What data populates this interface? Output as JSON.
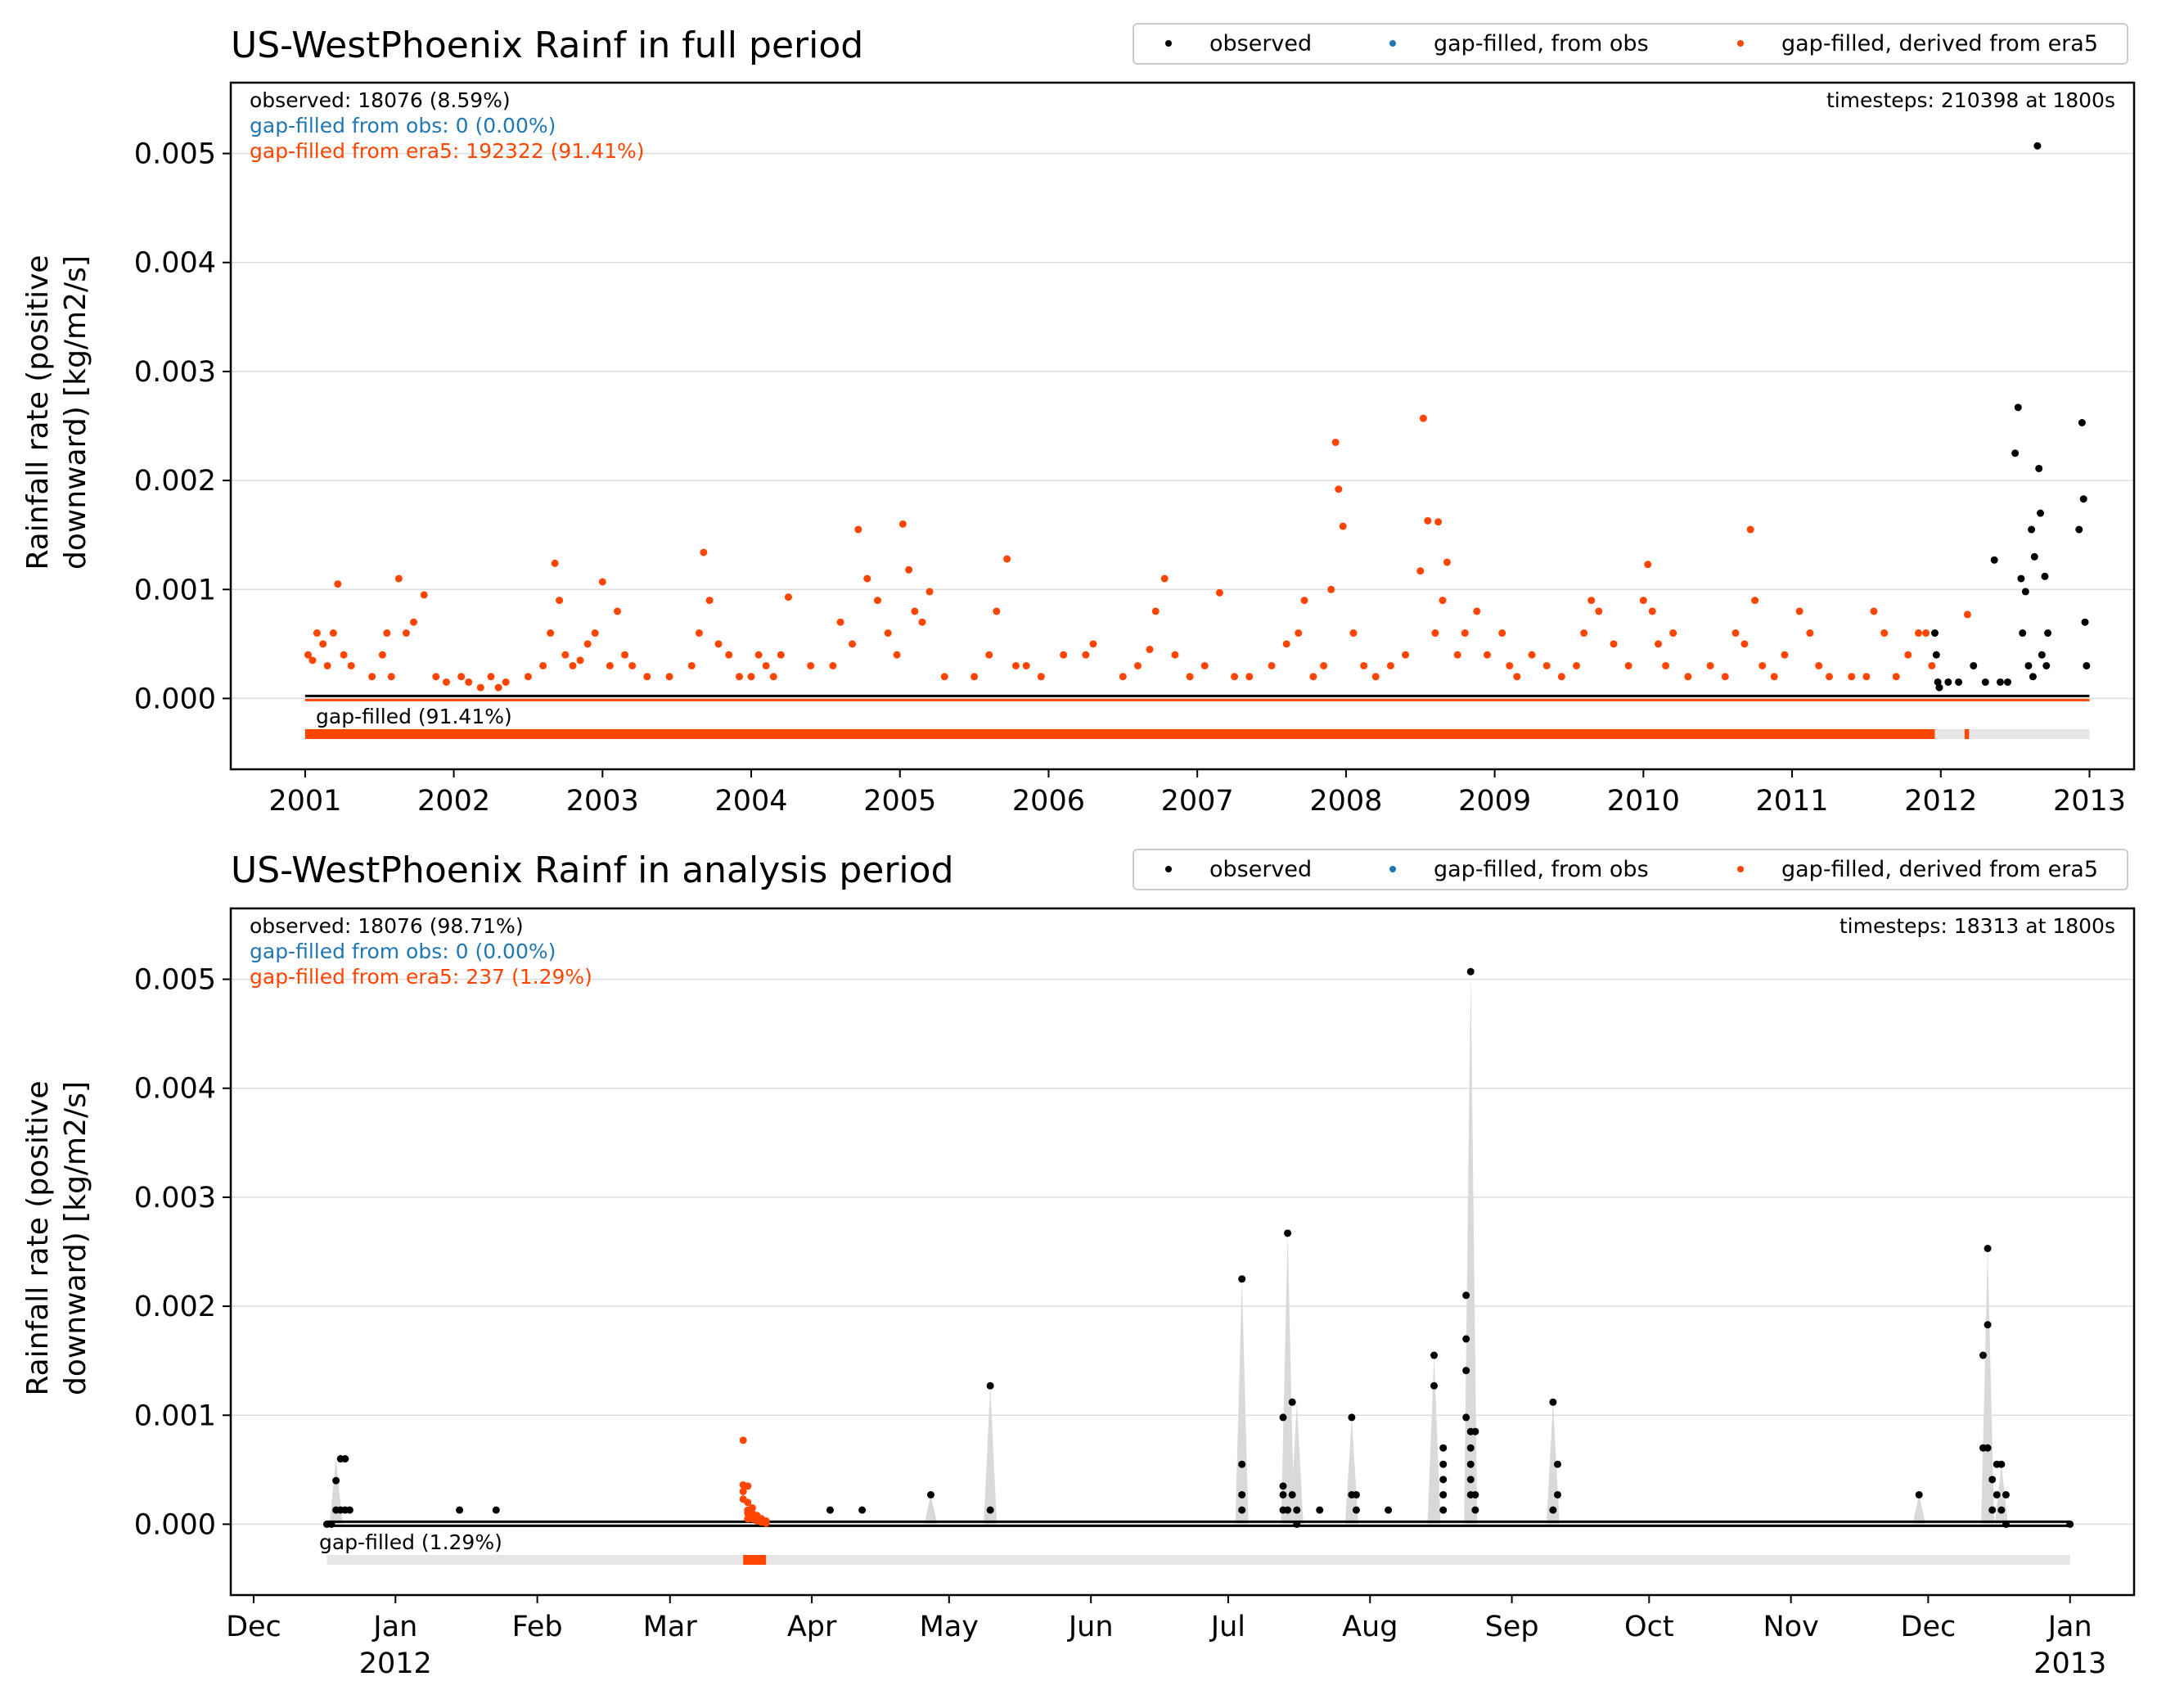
{
  "colors": {
    "observed": "#000000",
    "gapfilled_obs": "#1f77b4",
    "gapfilled_era5": "#ff4500",
    "shade": "#d9d9d9",
    "grid": "#dcdcdc",
    "gapbar_bg": "#e6e6e6"
  },
  "legend": {
    "observed": "observed",
    "gapfilled_obs": "gap-filled, from obs",
    "gapfilled_era5": "gap-filled, derived from era5"
  },
  "ylabel_line1": "Rainfall rate (positive",
  "ylabel_line2": "downward) [kg/m2/s]",
  "chart_data": [
    {
      "type": "scatter",
      "title": "US-WestPhoenix Rainf in full period",
      "ylabel": "Rainfall rate (positive downward) [kg/m2/s]",
      "xlabel": "",
      "xlim": [
        2000.5,
        2013.3
      ],
      "ylim": [
        -0.00065,
        0.00565
      ],
      "grid": "horizontal",
      "legend_position": "top-right, above plot",
      "yticks": [
        0.0,
        0.001,
        0.002,
        0.003,
        0.004,
        0.005
      ],
      "ytick_labels": [
        "0.000",
        "0.001",
        "0.002",
        "0.003",
        "0.004",
        "0.005"
      ],
      "xticks": [
        2001,
        2002,
        2003,
        2004,
        2005,
        2006,
        2007,
        2008,
        2009,
        2010,
        2011,
        2012,
        2013
      ],
      "xtick_labels": [
        [
          "2001"
        ],
        [
          "2002"
        ],
        [
          "2003"
        ],
        [
          "2004"
        ],
        [
          "2005"
        ],
        [
          "2006"
        ],
        [
          "2007"
        ],
        [
          "2008"
        ],
        [
          "2009"
        ],
        [
          "2010"
        ],
        [
          "2011"
        ],
        [
          "2012"
        ],
        [
          "2013"
        ]
      ],
      "annotations": {
        "observed": "observed: 18076 (8.59%)",
        "gapfilled_obs": "gap-filled from obs: 0 (0.00%)",
        "gapfilled_era5": "gap-filled from era5: 192322 (91.41%)",
        "timesteps": "timesteps: 210398 at 1800s",
        "gapbar_label": "gap-filled (91.41%)"
      },
      "gap_bar": {
        "range": [
          2001.0,
          2013.0
        ],
        "filled_segments": [
          [
            2001.0,
            2011.96
          ],
          [
            2012.16,
            2012.19
          ]
        ]
      },
      "series": [
        {
          "name": "gap-filled, derived from era5",
          "color_key": "gapfilled_era5",
          "x": [
            2001.02,
            2001.05,
            2001.08,
            2001.12,
            2001.15,
            2001.19,
            2001.22,
            2001.26,
            2001.31,
            2001.45,
            2001.52,
            2001.55,
            2001.58,
            2001.63,
            2001.68,
            2001.73,
            2001.8,
            2001.88,
            2001.95,
            2002.05,
            2002.1,
            2002.18,
            2002.25,
            2002.3,
            2002.35,
            2002.5,
            2002.6,
            2002.65,
            2002.68,
            2002.71,
            2002.75,
            2002.8,
            2002.85,
            2002.9,
            2002.95,
            2003.0,
            2003.05,
            2003.1,
            2003.15,
            2003.2,
            2003.3,
            2003.45,
            2003.6,
            2003.65,
            2003.68,
            2003.72,
            2003.78,
            2003.85,
            2003.92,
            2004.0,
            2004.05,
            2004.1,
            2004.15,
            2004.2,
            2004.25,
            2004.4,
            2004.55,
            2004.6,
            2004.68,
            2004.72,
            2004.78,
            2004.85,
            2004.92,
            2004.98,
            2005.02,
            2005.06,
            2005.1,
            2005.15,
            2005.2,
            2005.3,
            2005.5,
            2005.6,
            2005.65,
            2005.72,
            2005.78,
            2005.85,
            2005.95,
            2006.1,
            2006.25,
            2006.3,
            2006.5,
            2006.6,
            2006.68,
            2006.72,
            2006.78,
            2006.85,
            2006.95,
            2007.05,
            2007.15,
            2007.25,
            2007.35,
            2007.5,
            2007.6,
            2007.68,
            2007.72,
            2007.78,
            2007.85,
            2007.9,
            2007.93,
            2007.95,
            2007.98,
            2008.05,
            2008.12,
            2008.2,
            2008.3,
            2008.4,
            2008.5,
            2008.52,
            2008.55,
            2008.6,
            2008.62,
            2008.65,
            2008.68,
            2008.75,
            2008.8,
            2008.88,
            2008.95,
            2009.05,
            2009.1,
            2009.15,
            2009.25,
            2009.35,
            2009.45,
            2009.55,
            2009.6,
            2009.65,
            2009.7,
            2009.8,
            2009.9,
            2010.0,
            2010.03,
            2010.06,
            2010.1,
            2010.15,
            2010.2,
            2010.3,
            2010.45,
            2010.55,
            2010.62,
            2010.68,
            2010.72,
            2010.75,
            2010.8,
            2010.88,
            2010.95,
            2011.05,
            2011.12,
            2011.18,
            2011.25,
            2011.4,
            2011.5,
            2011.55,
            2011.62,
            2011.7,
            2011.78,
            2011.85,
            2011.9,
            2011.94,
            2012.18
          ],
          "y": [
            0.0004,
            0.00035,
            0.0006,
            0.0005,
            0.0003,
            0.0006,
            0.00105,
            0.0004,
            0.0003,
            0.0002,
            0.0004,
            0.0006,
            0.0002,
            0.0011,
            0.0006,
            0.0007,
            0.00095,
            0.0002,
            0.00015,
            0.0002,
            0.00015,
            0.0001,
            0.0002,
            0.0001,
            0.00015,
            0.0002,
            0.0003,
            0.0006,
            0.00124,
            0.0009,
            0.0004,
            0.0003,
            0.00035,
            0.0005,
            0.0006,
            0.00107,
            0.0003,
            0.0008,
            0.0004,
            0.0003,
            0.0002,
            0.0002,
            0.0003,
            0.0006,
            0.00134,
            0.0009,
            0.0005,
            0.0004,
            0.0002,
            0.0002,
            0.0004,
            0.0003,
            0.0002,
            0.0004,
            0.00093,
            0.0003,
            0.0003,
            0.0007,
            0.0005,
            0.00155,
            0.0011,
            0.0009,
            0.0006,
            0.0004,
            0.0016,
            0.00118,
            0.0008,
            0.0007,
            0.00098,
            0.0002,
            0.0002,
            0.0004,
            0.0008,
            0.00128,
            0.0003,
            0.0003,
            0.0002,
            0.0004,
            0.0004,
            0.0005,
            0.0002,
            0.0003,
            0.00045,
            0.0008,
            0.0011,
            0.0004,
            0.0002,
            0.0003,
            0.00097,
            0.0002,
            0.0002,
            0.0003,
            0.0005,
            0.0006,
            0.0009,
            0.0002,
            0.0003,
            0.001,
            0.00235,
            0.00192,
            0.00158,
            0.0006,
            0.0003,
            0.0002,
            0.0003,
            0.0004,
            0.00117,
            0.00257,
            0.00163,
            0.0006,
            0.00162,
            0.0009,
            0.00125,
            0.0004,
            0.0006,
            0.0008,
            0.0004,
            0.0006,
            0.0003,
            0.0002,
            0.0004,
            0.0003,
            0.0002,
            0.0003,
            0.0006,
            0.0009,
            0.0008,
            0.0005,
            0.0003,
            0.0009,
            0.00123,
            0.0008,
            0.0005,
            0.0003,
            0.0006,
            0.0002,
            0.0003,
            0.0002,
            0.0006,
            0.0005,
            0.00155,
            0.0009,
            0.0003,
            0.0002,
            0.0004,
            0.0008,
            0.0006,
            0.0003,
            0.0002,
            0.0002,
            0.0002,
            0.0008,
            0.0006,
            0.0002,
            0.0004,
            0.0006,
            0.0006,
            0.0003,
            0.00077
          ]
        },
        {
          "name": "observed",
          "color_key": "observed",
          "x": [
            2011.96,
            2011.97,
            2011.98,
            2011.99,
            2012.05,
            2012.12,
            2012.22,
            2012.3,
            2012.36,
            2012.4,
            2012.45,
            2012.5,
            2012.52,
            2012.54,
            2012.55,
            2012.57,
            2012.59,
            2012.61,
            2012.62,
            2012.63,
            2012.65,
            2012.66,
            2012.67,
            2012.68,
            2012.7,
            2012.71,
            2012.72,
            2012.93,
            2012.95,
            2012.96,
            2012.97,
            2012.98
          ],
          "y": [
            0.0006,
            0.0004,
            0.00015,
            0.0001,
            0.00015,
            0.00015,
            0.0003,
            0.00015,
            0.00127,
            0.00015,
            0.00015,
            0.00225,
            0.00267,
            0.0011,
            0.0006,
            0.00098,
            0.0003,
            0.00155,
            0.0002,
            0.0013,
            0.00507,
            0.00211,
            0.0017,
            0.0004,
            0.00112,
            0.0003,
            0.0006,
            0.00155,
            0.00253,
            0.00183,
            0.0007,
            0.0003
          ]
        }
      ]
    },
    {
      "type": "scatter",
      "title": "US-WestPhoenix Rainf in analysis period",
      "ylabel": "Rainfall rate (positive downward) [kg/m2/s]",
      "xlabel": "",
      "xlim": [
        "2011-11-26",
        "2013-01-15"
      ],
      "ylim": [
        -0.00065,
        0.00565
      ],
      "grid": "horizontal",
      "legend_position": "top-right, above plot",
      "yticks": [
        0.0,
        0.001,
        0.002,
        0.003,
        0.004,
        0.005
      ],
      "ytick_labels": [
        "0.000",
        "0.001",
        "0.002",
        "0.003",
        "0.004",
        "0.005"
      ],
      "xticks": [
        "2011-12-01",
        "2012-01-01",
        "2012-02-01",
        "2012-03-01",
        "2012-04-01",
        "2012-05-01",
        "2012-06-01",
        "2012-07-01",
        "2012-08-01",
        "2012-09-01",
        "2012-10-01",
        "2012-11-01",
        "2012-12-01",
        "2013-01-01"
      ],
      "xtick_labels": [
        [
          "Dec"
        ],
        [
          "Jan",
          "2012"
        ],
        [
          "Feb"
        ],
        [
          "Mar"
        ],
        [
          "Apr"
        ],
        [
          "May"
        ],
        [
          "Jun"
        ],
        [
          "Jul"
        ],
        [
          "Aug"
        ],
        [
          "Sep"
        ],
        [
          "Oct"
        ],
        [
          "Nov"
        ],
        [
          "Dec"
        ],
        [
          "Jan",
          "2013"
        ]
      ],
      "annotations": {
        "observed": "observed: 18076 (98.71%)",
        "gapfilled_obs": "gap-filled from obs: 0 (0.00%)",
        "gapfilled_era5": "gap-filled from era5: 237 (1.29%)",
        "timesteps": "timesteps: 18313 at 1800s",
        "gapbar_label": "gap-filled (1.29%)"
      },
      "gap_bar": {
        "range": [
          "2011-12-17",
          "2013-01-01"
        ],
        "filled_segments": [
          [
            "2012-03-17",
            "2012-03-22"
          ]
        ]
      },
      "series": [
        {
          "name": "observed",
          "color_key": "observed",
          "x": [
            "2011-12-17",
            "2011-12-18",
            "2011-12-19",
            "2011-12-19",
            "2011-12-20",
            "2011-12-20",
            "2011-12-21",
            "2011-12-21",
            "2011-12-22",
            "2012-01-15",
            "2012-01-23",
            "2012-04-05",
            "2012-04-12",
            "2012-04-27",
            "2012-05-10",
            "2012-05-10",
            "2012-07-04",
            "2012-07-04",
            "2012-07-04",
            "2012-07-04",
            "2012-07-13",
            "2012-07-13",
            "2012-07-13",
            "2012-07-13",
            "2012-07-14",
            "2012-07-14",
            "2012-07-15",
            "2012-07-15",
            "2012-07-16",
            "2012-07-16",
            "2012-07-21",
            "2012-07-28",
            "2012-07-28",
            "2012-07-29",
            "2012-07-29",
            "2012-08-05",
            "2012-08-15",
            "2012-08-15",
            "2012-08-17",
            "2012-08-17",
            "2012-08-17",
            "2012-08-17",
            "2012-08-17",
            "2012-08-22",
            "2012-08-22",
            "2012-08-22",
            "2012-08-22",
            "2012-08-23",
            "2012-08-23",
            "2012-08-23",
            "2012-08-23",
            "2012-08-23",
            "2012-08-23",
            "2012-08-24",
            "2012-08-24",
            "2012-08-24",
            "2012-09-10",
            "2012-09-10",
            "2012-09-11",
            "2012-09-11",
            "2012-11-29",
            "2012-12-13",
            "2012-12-13",
            "2012-12-14",
            "2012-12-14",
            "2012-12-14",
            "2012-12-15",
            "2012-12-15",
            "2012-12-16",
            "2012-12-16",
            "2012-12-17",
            "2012-12-17",
            "2012-12-18",
            "2012-12-18",
            "2013-01-01"
          ],
          "y": [
            0.0,
            0.0,
            0.00013,
            0.0004,
            0.0006,
            0.00013,
            0.0006,
            0.00013,
            0.00013,
            0.00013,
            0.00013,
            0.00013,
            0.00013,
            0.00027,
            0.00127,
            0.00013,
            0.00225,
            0.00055,
            0.00027,
            0.00013,
            0.00098,
            0.00027,
            0.00013,
            0.00035,
            0.00267,
            0.00013,
            0.00112,
            0.00027,
            0.00013,
            0.0,
            0.00013,
            0.00098,
            0.00027,
            0.00013,
            0.00027,
            0.00013,
            0.00155,
            0.00127,
            0.0007,
            0.00055,
            0.00041,
            0.00027,
            0.00013,
            0.0021,
            0.0017,
            0.00141,
            0.00098,
            0.00507,
            0.00085,
            0.0007,
            0.00055,
            0.00041,
            0.00027,
            0.00085,
            0.00013,
            0.00027,
            0.00112,
            0.00013,
            0.00055,
            0.00027,
            0.00027,
            0.00155,
            0.0007,
            0.00253,
            0.00183,
            0.0007,
            0.00041,
            0.00013,
            0.00055,
            0.00027,
            0.00055,
            0.00013,
            0.00027,
            0.0,
            0.0
          ],
          "shade_peaks": [
            [
              "2011-12-19",
              0.0006
            ],
            [
              "2012-04-27",
              0.00027
            ],
            [
              "2012-05-10",
              0.00127
            ],
            [
              "2012-07-04",
              0.00225
            ],
            [
              "2012-07-14",
              0.00267
            ],
            [
              "2012-07-16",
              0.00112
            ],
            [
              "2012-07-28",
              0.00098
            ],
            [
              "2012-08-15",
              0.00155
            ],
            [
              "2012-08-23",
              0.00507
            ],
            [
              "2012-09-10",
              0.00112
            ],
            [
              "2012-11-29",
              0.00027
            ],
            [
              "2012-12-14",
              0.00253
            ],
            [
              "2012-12-17",
              0.00055
            ]
          ]
        },
        {
          "name": "gap-filled, derived from era5",
          "color_key": "gapfilled_era5",
          "x": [
            "2012-03-17",
            "2012-03-17",
            "2012-03-17",
            "2012-03-17",
            "2012-03-18",
            "2012-03-18",
            "2012-03-18",
            "2012-03-18",
            "2012-03-18",
            "2012-03-19",
            "2012-03-19",
            "2012-03-19",
            "2012-03-20",
            "2012-03-20",
            "2012-03-21",
            "2012-03-21",
            "2012-03-22",
            "2012-03-22",
            "2012-03-22"
          ],
          "y": [
            0.00077,
            0.00036,
            0.0003,
            0.00023,
            0.00035,
            0.0002,
            0.00013,
            0.0001,
            5e-05,
            0.00015,
            0.0001,
            5e-05,
            8e-05,
            3e-05,
            5e-05,
            2e-05,
            3e-05,
            2e-05,
            1e-05
          ]
        }
      ]
    }
  ]
}
